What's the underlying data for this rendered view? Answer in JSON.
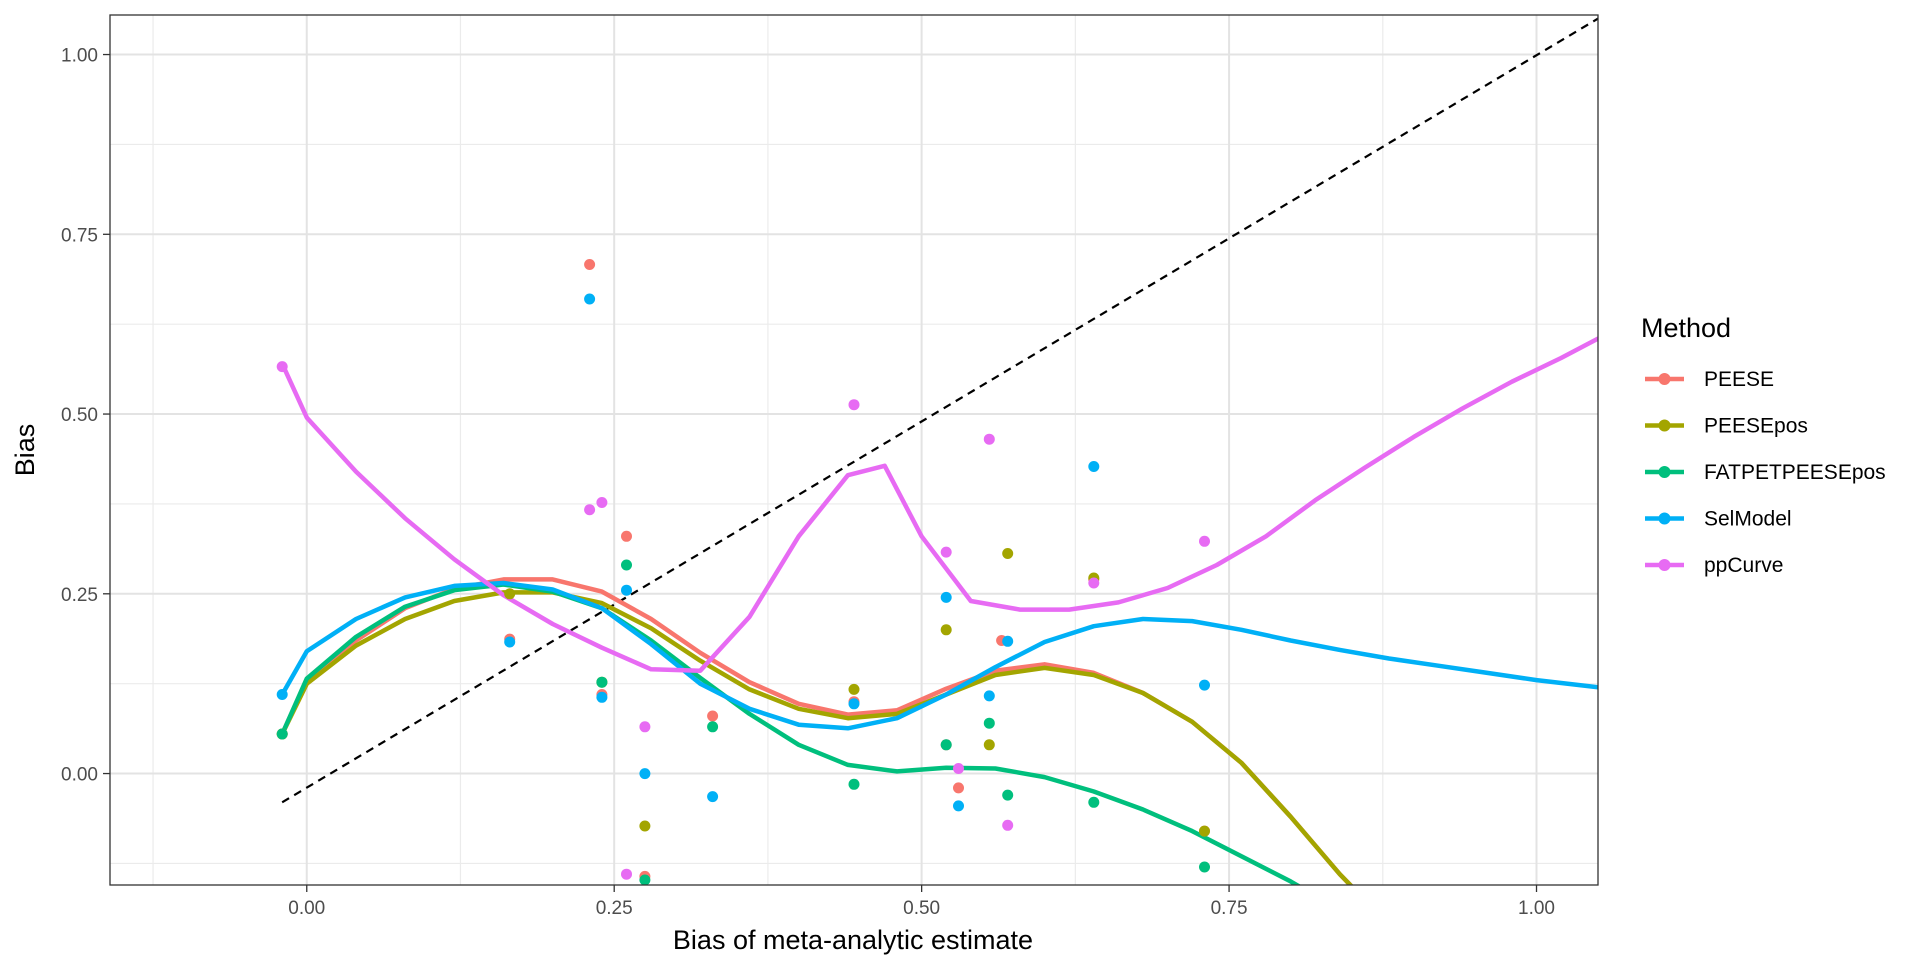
{
  "chart_data": {
    "type": "scatter",
    "title": "",
    "xlabel": "Bias of meta-analytic estimate",
    "ylabel": "Bias",
    "xlim": [
      -0.16,
      1.05
    ],
    "ylim": [
      -0.155,
      1.055
    ],
    "x_ticks": [
      0.0,
      0.25,
      0.5,
      0.75,
      1.0
    ],
    "x_tick_labels": [
      "0.00",
      "0.25",
      "0.50",
      "0.75",
      "1.00"
    ],
    "y_ticks": [
      0.0,
      0.25,
      0.5,
      0.75,
      1.0
    ],
    "y_tick_labels": [
      "0.00",
      "0.25",
      "0.50",
      "0.75",
      "1.00"
    ],
    "grid": true,
    "reference_line": {
      "type": "identity",
      "style": "dashed",
      "from": [
        -0.02,
        -0.04
      ],
      "to": [
        1.05,
        1.05
      ]
    },
    "legend": {
      "title": "Method",
      "position": "right"
    },
    "series": [
      {
        "name": "PEESE",
        "color": "#F8766D",
        "points": [
          [
            -0.02,
            0.055
          ],
          [
            0.165,
            0.187
          ],
          [
            0.23,
            0.708
          ],
          [
            0.24,
            0.11
          ],
          [
            0.26,
            0.33
          ],
          [
            0.275,
            -0.143
          ],
          [
            0.33,
            0.08
          ],
          [
            0.445,
            0.1
          ],
          [
            0.52,
            0.04
          ],
          [
            0.53,
            -0.02
          ],
          [
            0.565,
            0.185
          ],
          [
            0.64,
            0.27
          ],
          [
            0.73,
            -0.08
          ]
        ],
        "smooth": [
          [
            -0.02,
            0.055
          ],
          [
            0.0,
            0.13
          ],
          [
            0.04,
            0.185
          ],
          [
            0.08,
            0.23
          ],
          [
            0.12,
            0.257
          ],
          [
            0.16,
            0.27
          ],
          [
            0.2,
            0.27
          ],
          [
            0.24,
            0.253
          ],
          [
            0.28,
            0.215
          ],
          [
            0.32,
            0.168
          ],
          [
            0.36,
            0.127
          ],
          [
            0.4,
            0.097
          ],
          [
            0.44,
            0.082
          ],
          [
            0.48,
            0.088
          ],
          [
            0.52,
            0.118
          ],
          [
            0.56,
            0.143
          ],
          [
            0.6,
            0.152
          ],
          [
            0.64,
            0.14
          ],
          [
            0.68,
            0.112
          ],
          [
            0.72,
            0.072
          ],
          [
            0.76,
            0.015
          ],
          [
            0.8,
            -0.06
          ],
          [
            0.84,
            -0.14
          ],
          [
            0.86,
            -0.175
          ]
        ]
      },
      {
        "name": "PEESEpos",
        "color": "#A3A500",
        "points": [
          [
            -0.02,
            0.055
          ],
          [
            0.165,
            0.25
          ],
          [
            0.24,
            0.127
          ],
          [
            0.275,
            -0.073
          ],
          [
            0.445,
            0.117
          ],
          [
            0.52,
            0.2
          ],
          [
            0.555,
            0.04
          ],
          [
            0.57,
            0.306
          ],
          [
            0.64,
            0.272
          ],
          [
            0.73,
            -0.08
          ]
        ],
        "smooth": [
          [
            -0.02,
            0.055
          ],
          [
            0.0,
            0.125
          ],
          [
            0.04,
            0.178
          ],
          [
            0.08,
            0.215
          ],
          [
            0.12,
            0.24
          ],
          [
            0.16,
            0.252
          ],
          [
            0.2,
            0.252
          ],
          [
            0.24,
            0.237
          ],
          [
            0.28,
            0.202
          ],
          [
            0.32,
            0.157
          ],
          [
            0.36,
            0.117
          ],
          [
            0.4,
            0.09
          ],
          [
            0.44,
            0.077
          ],
          [
            0.48,
            0.083
          ],
          [
            0.52,
            0.11
          ],
          [
            0.56,
            0.137
          ],
          [
            0.6,
            0.147
          ],
          [
            0.64,
            0.137
          ],
          [
            0.68,
            0.112
          ],
          [
            0.72,
            0.072
          ],
          [
            0.76,
            0.015
          ],
          [
            0.8,
            -0.06
          ],
          [
            0.84,
            -0.14
          ],
          [
            0.86,
            -0.175
          ]
        ]
      },
      {
        "name": "FATPETPEESEpos",
        "color": "#00BF7D",
        "points": [
          [
            -0.02,
            0.055
          ],
          [
            0.24,
            0.127
          ],
          [
            0.26,
            0.29
          ],
          [
            0.275,
            -0.148
          ],
          [
            0.33,
            0.065
          ],
          [
            0.445,
            -0.015
          ],
          [
            0.52,
            0.04
          ],
          [
            0.555,
            0.07
          ],
          [
            0.57,
            -0.03
          ],
          [
            0.64,
            -0.04
          ],
          [
            0.73,
            -0.13
          ]
        ],
        "smooth": [
          [
            -0.02,
            0.055
          ],
          [
            0.0,
            0.132
          ],
          [
            0.04,
            0.19
          ],
          [
            0.08,
            0.232
          ],
          [
            0.12,
            0.255
          ],
          [
            0.16,
            0.263
          ],
          [
            0.2,
            0.253
          ],
          [
            0.24,
            0.23
          ],
          [
            0.28,
            0.185
          ],
          [
            0.32,
            0.133
          ],
          [
            0.36,
            0.083
          ],
          [
            0.4,
            0.04
          ],
          [
            0.44,
            0.012
          ],
          [
            0.48,
            0.003
          ],
          [
            0.52,
            0.008
          ],
          [
            0.56,
            0.007
          ],
          [
            0.6,
            -0.005
          ],
          [
            0.64,
            -0.025
          ],
          [
            0.68,
            -0.05
          ],
          [
            0.72,
            -0.08
          ],
          [
            0.76,
            -0.115
          ],
          [
            0.8,
            -0.15
          ],
          [
            0.84,
            -0.19
          ]
        ]
      },
      {
        "name": "SelModel",
        "color": "#00B0F6",
        "points": [
          [
            -0.02,
            0.11
          ],
          [
            0.165,
            0.183
          ],
          [
            0.23,
            0.66
          ],
          [
            0.24,
            0.106
          ],
          [
            0.26,
            0.255
          ],
          [
            0.275,
            0.0
          ],
          [
            0.33,
            -0.032
          ],
          [
            0.445,
            0.097
          ],
          [
            0.52,
            0.245
          ],
          [
            0.53,
            -0.045
          ],
          [
            0.555,
            0.108
          ],
          [
            0.57,
            0.184
          ],
          [
            0.64,
            0.427
          ],
          [
            0.73,
            0.123
          ]
        ],
        "smooth": [
          [
            -0.02,
            0.11
          ],
          [
            0.0,
            0.17
          ],
          [
            0.04,
            0.215
          ],
          [
            0.08,
            0.245
          ],
          [
            0.12,
            0.261
          ],
          [
            0.16,
            0.265
          ],
          [
            0.2,
            0.256
          ],
          [
            0.24,
            0.23
          ],
          [
            0.28,
            0.18
          ],
          [
            0.32,
            0.125
          ],
          [
            0.36,
            0.09
          ],
          [
            0.4,
            0.068
          ],
          [
            0.44,
            0.063
          ],
          [
            0.48,
            0.077
          ],
          [
            0.52,
            0.11
          ],
          [
            0.56,
            0.148
          ],
          [
            0.6,
            0.183
          ],
          [
            0.64,
            0.205
          ],
          [
            0.68,
            0.215
          ],
          [
            0.72,
            0.212
          ],
          [
            0.76,
            0.2
          ],
          [
            0.8,
            0.185
          ],
          [
            0.84,
            0.172
          ],
          [
            0.88,
            0.16
          ],
          [
            0.92,
            0.15
          ],
          [
            0.96,
            0.14
          ],
          [
            1.0,
            0.13
          ],
          [
            1.05,
            0.12
          ]
        ]
      },
      {
        "name": "ppCurve",
        "color": "#E76BF3",
        "points": [
          [
            -0.02,
            0.566
          ],
          [
            0.23,
            0.367
          ],
          [
            0.24,
            0.377
          ],
          [
            0.26,
            -0.14
          ],
          [
            0.275,
            0.065
          ],
          [
            0.445,
            0.513
          ],
          [
            0.52,
            0.308
          ],
          [
            0.53,
            0.007
          ],
          [
            0.555,
            0.465
          ],
          [
            0.57,
            -0.072
          ],
          [
            0.64,
            0.265
          ],
          [
            0.73,
            0.323
          ]
        ],
        "smooth": [
          [
            -0.02,
            0.57
          ],
          [
            0.0,
            0.495
          ],
          [
            0.04,
            0.42
          ],
          [
            0.08,
            0.355
          ],
          [
            0.12,
            0.298
          ],
          [
            0.16,
            0.248
          ],
          [
            0.2,
            0.208
          ],
          [
            0.24,
            0.175
          ],
          [
            0.28,
            0.145
          ],
          [
            0.32,
            0.143
          ],
          [
            0.36,
            0.218
          ],
          [
            0.4,
            0.33
          ],
          [
            0.44,
            0.415
          ],
          [
            0.47,
            0.428
          ],
          [
            0.5,
            0.33
          ],
          [
            0.54,
            0.24
          ],
          [
            0.58,
            0.228
          ],
          [
            0.62,
            0.228
          ],
          [
            0.66,
            0.238
          ],
          [
            0.7,
            0.258
          ],
          [
            0.74,
            0.29
          ],
          [
            0.78,
            0.33
          ],
          [
            0.82,
            0.38
          ],
          [
            0.86,
            0.425
          ],
          [
            0.9,
            0.468
          ],
          [
            0.94,
            0.508
          ],
          [
            0.98,
            0.545
          ],
          [
            1.02,
            0.578
          ],
          [
            1.05,
            0.605
          ]
        ]
      }
    ]
  }
}
